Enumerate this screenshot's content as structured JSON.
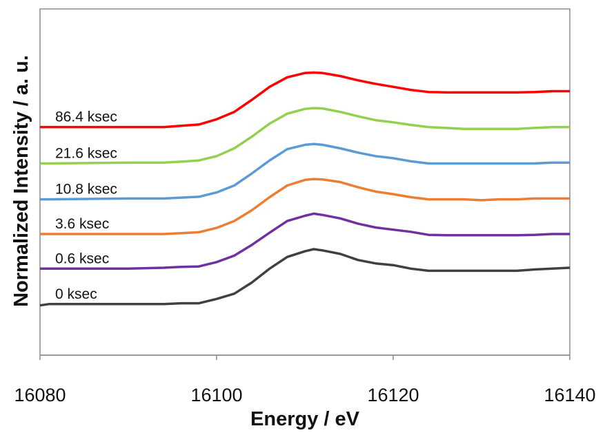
{
  "chart_data": {
    "type": "line",
    "title": "",
    "xlabel": "Energy / eV",
    "ylabel": "Normalized Intensity / a. u.",
    "xlim": [
      16080,
      16140
    ],
    "ylim": [
      0,
      8
    ],
    "x_ticks": [
      "16080",
      "16100",
      "16120",
      "16140"
    ],
    "y_ticks_visible": false,
    "grid": false,
    "legend": "none",
    "series_labels_inline": true,
    "x": [
      16080,
      16081,
      16090,
      16094,
      16096,
      16098,
      16100,
      16102,
      16104,
      16106,
      16108,
      16110,
      16111,
      16112,
      16114,
      16116,
      16118,
      16120,
      16122,
      16124,
      16126,
      16128,
      16130,
      16132,
      16134,
      16136,
      16138,
      16140
    ],
    "series": [
      {
        "name": "0 ksec",
        "color": "#404040",
        "values": [
          1.15,
          1.18,
          1.18,
          1.18,
          1.2,
          1.2,
          1.3,
          1.42,
          1.68,
          2.0,
          2.27,
          2.4,
          2.45,
          2.42,
          2.34,
          2.2,
          2.12,
          2.08,
          2.0,
          1.95,
          1.95,
          1.95,
          1.95,
          1.95,
          1.95,
          1.98,
          2.0,
          2.02
        ]
      },
      {
        "name": "0.6 ksec",
        "color": "#7030A0",
        "values": [
          2.0,
          2.0,
          2.0,
          2.02,
          2.04,
          2.05,
          2.15,
          2.3,
          2.55,
          2.83,
          3.1,
          3.22,
          3.27,
          3.24,
          3.16,
          3.04,
          2.95,
          2.9,
          2.85,
          2.78,
          2.77,
          2.77,
          2.77,
          2.77,
          2.77,
          2.78,
          2.8,
          2.8
        ]
      },
      {
        "name": "3.6 ksec",
        "color": "#ED7D31",
        "values": [
          2.8,
          2.8,
          2.8,
          2.8,
          2.82,
          2.84,
          2.94,
          3.1,
          3.35,
          3.65,
          3.92,
          4.05,
          4.07,
          4.06,
          4.0,
          3.88,
          3.78,
          3.72,
          3.65,
          3.6,
          3.6,
          3.6,
          3.58,
          3.6,
          3.6,
          3.62,
          3.62,
          3.62
        ]
      },
      {
        "name": "10.8 ksec",
        "color": "#5B9BD5",
        "values": [
          3.6,
          3.6,
          3.62,
          3.62,
          3.64,
          3.66,
          3.76,
          3.92,
          4.2,
          4.5,
          4.76,
          4.86,
          4.88,
          4.86,
          4.78,
          4.68,
          4.6,
          4.55,
          4.48,
          4.43,
          4.43,
          4.43,
          4.43,
          4.43,
          4.43,
          4.43,
          4.45,
          4.45
        ]
      },
      {
        "name": "21.6 ksec",
        "color": "#92D050",
        "values": [
          4.43,
          4.43,
          4.45,
          4.45,
          4.47,
          4.5,
          4.6,
          4.78,
          5.05,
          5.35,
          5.58,
          5.69,
          5.71,
          5.7,
          5.62,
          5.52,
          5.43,
          5.38,
          5.32,
          5.27,
          5.25,
          5.23,
          5.23,
          5.23,
          5.23,
          5.25,
          5.27,
          5.27
        ]
      },
      {
        "name": "86.4 ksec",
        "color": "#FF0000",
        "values": [
          5.27,
          5.27,
          5.27,
          5.27,
          5.3,
          5.33,
          5.45,
          5.62,
          5.9,
          6.2,
          6.42,
          6.52,
          6.53,
          6.52,
          6.45,
          6.35,
          6.27,
          6.2,
          6.13,
          6.08,
          6.07,
          6.07,
          6.07,
          6.07,
          6.07,
          6.08,
          6.1,
          6.1
        ]
      }
    ]
  }
}
